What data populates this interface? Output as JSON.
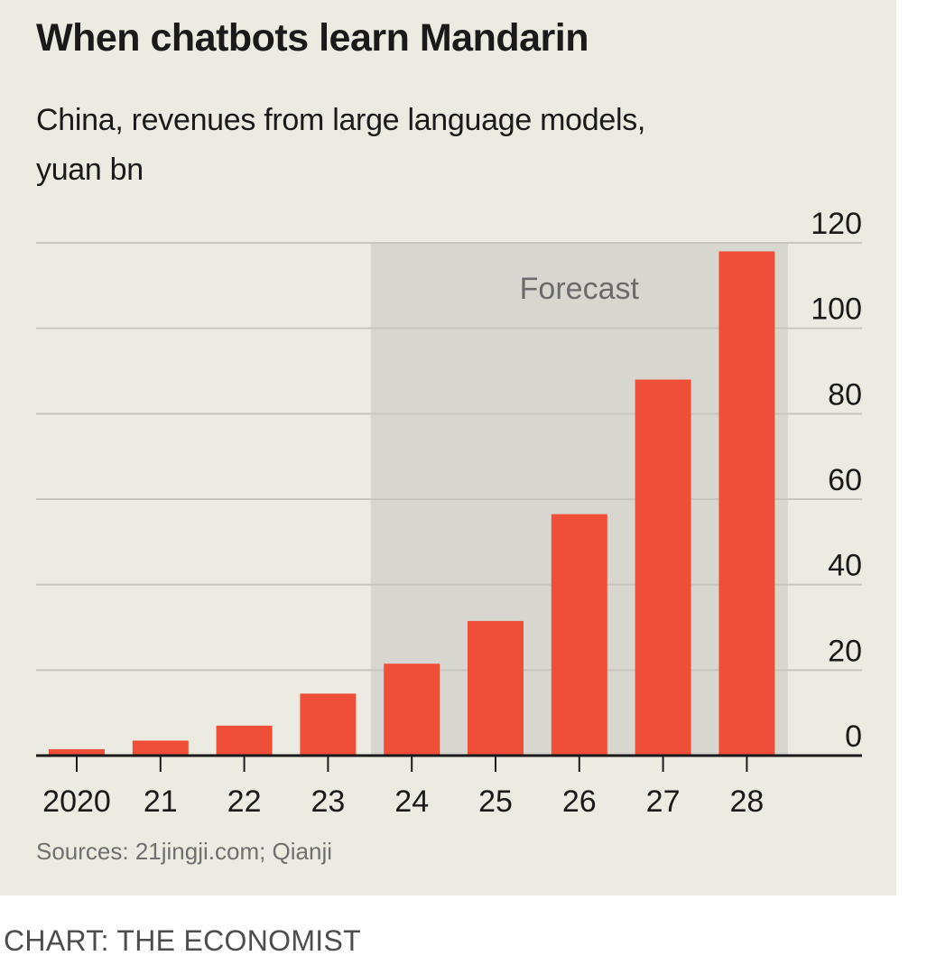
{
  "chart_data": {
    "type": "bar",
    "title": "When chatbots learn Mandarin",
    "subtitle": "China, revenues from large language models, yuan bn",
    "categories": [
      "2020",
      "21",
      "22",
      "23",
      "24",
      "25",
      "26",
      "27",
      "28"
    ],
    "values": [
      1.5,
      3.5,
      7,
      14.5,
      21.5,
      31.5,
      56.5,
      88,
      118
    ],
    "forecast_label": "Forecast",
    "forecast_categories": [
      "24",
      "25",
      "26",
      "27",
      "28"
    ],
    "yticks": [
      0,
      20,
      40,
      60,
      80,
      100,
      120
    ],
    "ylim": [
      0,
      120
    ],
    "y_axis_side": "right",
    "grid": true,
    "source": "Sources: 21jingji.com; Qianji",
    "bar_color": "#ef4f38",
    "forecast_shade_color": "#d8d7cf"
  },
  "credit": "CHART: THE ECONOMIST"
}
